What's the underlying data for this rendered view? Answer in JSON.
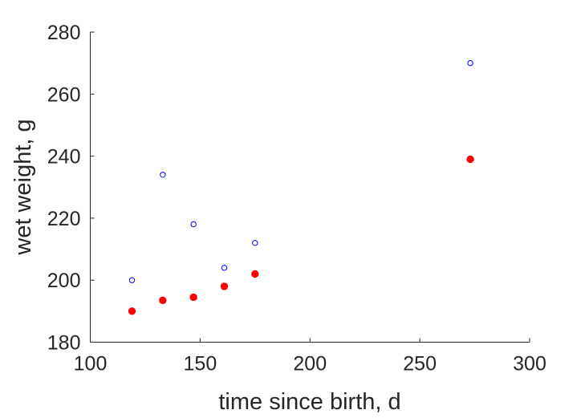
{
  "chart_data": {
    "type": "scatter",
    "xlabel": "time since birth, d",
    "ylabel": "wet weight, g",
    "xlim": [
      100,
      300
    ],
    "ylim": [
      180,
      280
    ],
    "xticks": [
      100,
      150,
      200,
      250,
      300
    ],
    "yticks": [
      180,
      200,
      220,
      240,
      260,
      280
    ],
    "grid": false,
    "series": [
      {
        "marker": "open-circle",
        "color": "#0000ff",
        "points": [
          {
            "x": 119,
            "y": 200
          },
          {
            "x": 133,
            "y": 234
          },
          {
            "x": 147,
            "y": 218
          },
          {
            "x": 161,
            "y": 204
          },
          {
            "x": 175,
            "y": 212
          },
          {
            "x": 273,
            "y": 270
          }
        ]
      },
      {
        "marker": "filled-circle",
        "color": "#ff0000",
        "points": [
          {
            "x": 119,
            "y": 190
          },
          {
            "x": 133,
            "y": 193.5
          },
          {
            "x": 147,
            "y": 194.5
          },
          {
            "x": 161,
            "y": 198
          },
          {
            "x": 175,
            "y": 202
          },
          {
            "x": 273,
            "y": 239
          }
        ]
      }
    ]
  }
}
